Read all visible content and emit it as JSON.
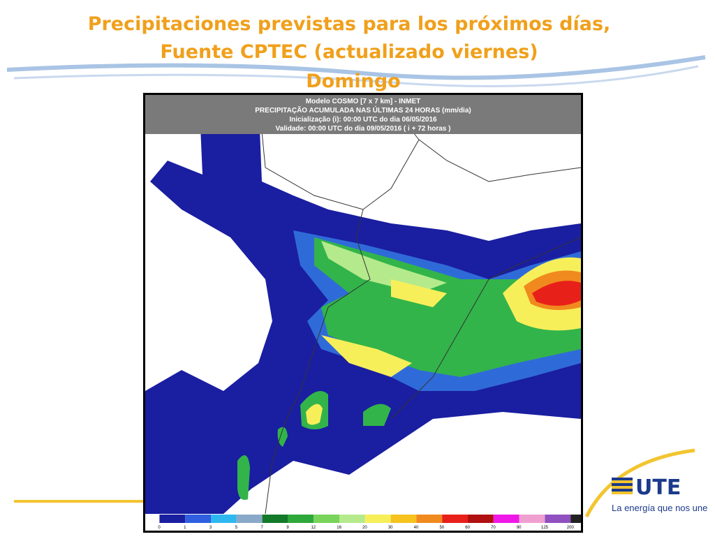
{
  "header": {
    "title_lines": [
      "Precipitaciones previstas para los próximos días,",
      "Fuente CPTEC (actualizado viernes)",
      "Domingo"
    ]
  },
  "map": {
    "header_lines": [
      "Modelo COSMO [7 x 7 km] - INMET",
      "PRECIPITAÇÃO ACUMULADA NAS ÚLTIMAS 24 HORAS (mm/dia)",
      "Inicialização (i): 00:00 UTC do dia 06/05/2016",
      "Validade: 00:00 UTC do dia 09/05/2016 ( i + 72 horas )"
    ],
    "legend_labels": [
      "0",
      "1",
      "3",
      "5",
      "7",
      "9",
      "12",
      "16",
      "20",
      "30",
      "40",
      "50",
      "60",
      "70",
      "90",
      "125",
      "200"
    ]
  },
  "logo": {
    "name": "UTE",
    "tagline": "La energía que nos une"
  }
}
